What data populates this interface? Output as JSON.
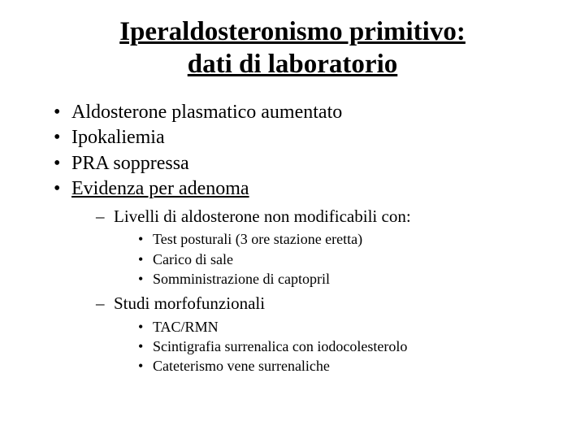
{
  "title_line1": "Iperaldosteronismo primitivo:",
  "title_line2": "dati di laboratorio",
  "items": [
    {
      "text": "Aldosterone plasmatico aumentato",
      "underline": false
    },
    {
      "text": "Ipokaliemia",
      "underline": false
    },
    {
      "text": "PRA soppressa",
      "underline": false
    },
    {
      "text": "Evidenza per adenoma",
      "underline": true
    }
  ],
  "sub": [
    {
      "text": "Livelli di aldosterone non modificabili con:",
      "children": [
        "Test posturali (3 ore stazione eretta)",
        "Carico di sale",
        "Somministrazione di captopril"
      ]
    },
    {
      "text": "Studi morfofunzionali",
      "children": [
        "TAC/RMN",
        "Scintigrafia surrenalica con iodocolesterolo",
        "Cateterismo vene surrenaliche"
      ]
    }
  ],
  "colors": {
    "background": "#ffffff",
    "text": "#000000"
  }
}
